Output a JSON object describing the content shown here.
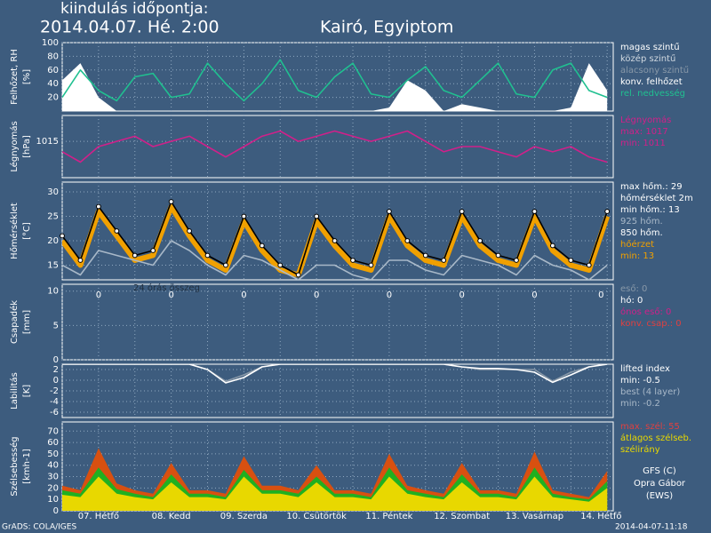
{
  "header": {
    "label": "kiindulás időpontja:",
    "date": "2014.04.07. Hé. 2:00",
    "location": "Kairó, Egyiptom"
  },
  "xaxis": {
    "xlim": [
      0,
      182
    ],
    "x": [
      12,
      36,
      60,
      84,
      108,
      132,
      156,
      178
    ],
    "categories": [
      "07. Hétfő",
      "08. Kedd",
      "09. Szerda",
      "10. Csütörtök",
      "11. Péntek",
      "12. Szombat",
      "13. Vasárnap",
      "14. Hétfő"
    ],
    "xticks": [
      0,
      12,
      24,
      36,
      48,
      60,
      72,
      84,
      96,
      108,
      120,
      132,
      144,
      156,
      168,
      180
    ]
  },
  "chart_data": [
    {
      "type": "line",
      "ylabel": [
        "Felhőzet, RH",
        "[%]"
      ],
      "ylim": [
        0,
        100
      ],
      "yticks": [
        20,
        40,
        60,
        80,
        100
      ],
      "grid": true,
      "x": [
        0,
        6,
        12,
        18,
        24,
        30,
        36,
        42,
        48,
        54,
        60,
        66,
        72,
        78,
        84,
        90,
        96,
        102,
        108,
        114,
        120,
        126,
        132,
        138,
        144,
        150,
        156,
        162,
        168,
        174,
        180
      ],
      "series": [
        {
          "color": "#ffffff",
          "fill": true,
          "values": [
            45,
            70,
            20,
            0,
            0,
            0,
            0,
            0,
            0,
            0,
            0,
            0,
            0,
            0,
            0,
            0,
            0,
            0,
            5,
            45,
            30,
            0,
            10,
            5,
            0,
            0,
            0,
            0,
            5,
            70,
            30
          ]
        },
        {
          "color": "#20c090",
          "values": [
            20,
            60,
            30,
            15,
            50,
            55,
            20,
            25,
            70,
            40,
            15,
            40,
            75,
            30,
            20,
            50,
            70,
            25,
            20,
            45,
            65,
            30,
            20,
            45,
            70,
            25,
            20,
            60,
            70,
            30,
            20
          ]
        }
      ],
      "legend": [
        {
          "text": "magas szintű",
          "color": "#ffffff"
        },
        {
          "text": "közép szintű",
          "color": "#d0d8e0"
        },
        {
          "text": "alacsony szintű",
          "color": "#8898a8"
        },
        {
          "text": "konv. felhőzet",
          "color": "#ffffff"
        },
        {
          "text": "rel. nedvesség",
          "color": "#20c090"
        }
      ]
    },
    {
      "type": "line",
      "ylabel": [
        "Légnyomás",
        "[hPa]"
      ],
      "ylim": [
        1008,
        1020
      ],
      "yticks": [
        1015
      ],
      "grid": true,
      "x": [
        0,
        6,
        12,
        18,
        24,
        30,
        36,
        42,
        48,
        54,
        60,
        66,
        72,
        78,
        84,
        90,
        96,
        102,
        108,
        114,
        120,
        126,
        132,
        138,
        144,
        150,
        156,
        162,
        168,
        174,
        180
      ],
      "series": [
        {
          "color": "#d0208a",
          "values": [
            1013,
            1011,
            1014,
            1015,
            1016,
            1014,
            1015,
            1016,
            1014,
            1012,
            1014,
            1016,
            1017,
            1015,
            1016,
            1017,
            1016,
            1015,
            1016,
            1017,
            1015,
            1013,
            1014,
            1014,
            1013,
            1012,
            1014,
            1013,
            1014,
            1012,
            1011
          ]
        }
      ],
      "legend": [
        {
          "text": "Légnyomás",
          "color": "#d0208a"
        },
        {
          "text": "max: 1017",
          "color": "#d0208a"
        },
        {
          "text": "min: 1011",
          "color": "#d0208a"
        }
      ]
    },
    {
      "type": "line",
      "ylabel": [
        "Hőmérséklet",
        "[°C]"
      ],
      "ylim": [
        12,
        32
      ],
      "yticks": [
        15,
        20,
        25,
        30
      ],
      "grid": true,
      "x": [
        0,
        6,
        12,
        18,
        24,
        30,
        36,
        42,
        48,
        54,
        60,
        66,
        72,
        78,
        84,
        90,
        96,
        102,
        108,
        114,
        120,
        126,
        132,
        138,
        144,
        150,
        156,
        162,
        168,
        174,
        180
      ],
      "series": [
        {
          "color": "#f0a000",
          "width": 6,
          "values": [
            20,
            15,
            26,
            21,
            16,
            17,
            27,
            21,
            16,
            14,
            24,
            18,
            14,
            13,
            24,
            19,
            15,
            14,
            25,
            19,
            16,
            15,
            25,
            19,
            16,
            15,
            25,
            18,
            15,
            14,
            25
          ]
        },
        {
          "color": "#a8b8c8",
          "values": [
            15,
            13,
            18,
            17,
            16,
            15,
            20,
            18,
            15,
            13,
            17,
            16,
            14,
            12,
            15,
            15,
            13,
            12,
            16,
            16,
            14,
            13,
            17,
            16,
            15,
            13,
            17,
            15,
            14,
            12,
            15
          ]
        },
        {
          "color": "#000000",
          "dots": true,
          "values": [
            21,
            16,
            27,
            22,
            17,
            18,
            28,
            22,
            17,
            15,
            25,
            19,
            15,
            13,
            25,
            20,
            16,
            15,
            26,
            20,
            17,
            16,
            26,
            20,
            17,
            16,
            26,
            19,
            16,
            15,
            26
          ]
        }
      ],
      "legend": [
        {
          "text": "max hőm.: 29",
          "color": "#ffffff"
        },
        {
          "text": "hőmérséklet 2m",
          "color": "#ffffff"
        },
        {
          "text": "min hőm.: 13",
          "color": "#ffffff"
        },
        {
          "text": "925 hőm.",
          "color": "#a8b8c8"
        },
        {
          "text": "850 hőm.",
          "color": "#ffffff"
        },
        {
          "text": "hőérzet",
          "color": "#f0a000"
        },
        {
          "text": "min: 13",
          "color": "#f0a000"
        }
      ]
    },
    {
      "type": "bar",
      "ylabel": [
        "Csapadék",
        "[mm]"
      ],
      "ylim": [
        0,
        11
      ],
      "yticks": [
        0,
        5,
        10
      ],
      "grid": true,
      "annotation": "24 órás összeg",
      "x": [
        12,
        36,
        60,
        84,
        108,
        132,
        156,
        178
      ],
      "values": [
        0,
        0,
        0,
        0,
        0,
        0,
        0,
        0
      ],
      "color": "#40a0ff",
      "legend": [
        {
          "text": "eső: 0",
          "color": "#8898a8"
        },
        {
          "text": "hó: 0",
          "color": "#ffffff"
        },
        {
          "text": "ónos eső: 0",
          "color": "#d0208a"
        },
        {
          "text": "konv. csap.: 0",
          "color": "#e04040"
        }
      ]
    },
    {
      "type": "line",
      "ylabel": [
        "Labilitás",
        "[K]"
      ],
      "ylim": [
        -7,
        3
      ],
      "yticks": [
        2,
        0,
        -2,
        -4,
        -6
      ],
      "grid": true,
      "x": [
        0,
        6,
        12,
        18,
        24,
        30,
        36,
        42,
        48,
        54,
        60,
        66,
        72,
        78,
        84,
        90,
        96,
        102,
        108,
        114,
        120,
        126,
        132,
        138,
        144,
        150,
        156,
        162,
        168,
        174,
        180
      ],
      "series": [
        {
          "color": "#8898a8",
          "values": [
            3,
            3,
            3,
            3,
            3,
            3,
            3,
            3,
            2,
            -0.2,
            1,
            2.5,
            3,
            3,
            3,
            3,
            3,
            3,
            3,
            3,
            3,
            3,
            2.5,
            2,
            2,
            2,
            2,
            -0.2,
            1.5,
            2.5,
            3
          ]
        },
        {
          "color": "#ffffff",
          "values": [
            3,
            3,
            3,
            3,
            3,
            3,
            3,
            3,
            2,
            -0.5,
            0.5,
            2.5,
            3,
            3,
            3,
            3,
            3,
            3,
            3,
            3,
            3,
            3,
            2.5,
            2.2,
            2.2,
            2,
            1.5,
            -0.4,
            1,
            2.5,
            3
          ]
        }
      ],
      "legend": [
        {
          "text": "lifted index",
          "color": "#ffffff"
        },
        {
          "text": "min: -0.5",
          "color": "#ffffff"
        },
        {
          "text": "best (4 layer)",
          "color": "#a8b8c8"
        },
        {
          "text": "min: -0.2",
          "color": "#a8b8c8"
        }
      ]
    },
    {
      "type": "line",
      "ylabel": [
        "Szélsebesség",
        "[kmh-1]"
      ],
      "ylim": [
        0,
        78
      ],
      "yticks": [
        0,
        10,
        20,
        30,
        40,
        50,
        60,
        70
      ],
      "grid": true,
      "x": [
        0,
        6,
        12,
        18,
        24,
        30,
        36,
        42,
        48,
        54,
        60,
        66,
        72,
        78,
        84,
        90,
        96,
        102,
        108,
        114,
        120,
        126,
        132,
        138,
        144,
        150,
        156,
        162,
        168,
        174,
        180
      ],
      "series": [
        {
          "color": "#d85010",
          "fill": true,
          "values": [
            22,
            18,
            55,
            24,
            18,
            15,
            42,
            18,
            18,
            15,
            48,
            22,
            22,
            18,
            40,
            18,
            18,
            15,
            50,
            22,
            18,
            15,
            42,
            18,
            18,
            15,
            52,
            18,
            15,
            12,
            35
          ]
        },
        {
          "color": "#20b020",
          "fill": true,
          "values": [
            18,
            15,
            38,
            19,
            15,
            12,
            32,
            15,
            15,
            12,
            36,
            18,
            18,
            15,
            30,
            15,
            15,
            12,
            38,
            18,
            15,
            12,
            32,
            15,
            15,
            12,
            38,
            15,
            12,
            10,
            26
          ]
        },
        {
          "color": "#e8d800",
          "fill": true,
          "values": [
            14,
            12,
            30,
            15,
            12,
            10,
            25,
            12,
            12,
            10,
            30,
            15,
            15,
            12,
            25,
            12,
            12,
            10,
            30,
            15,
            12,
            10,
            25,
            12,
            12,
            10,
            30,
            12,
            10,
            8,
            20
          ]
        }
      ],
      "legend": [
        {
          "text": "max. szél: 55",
          "color": "#e04040"
        },
        {
          "text": "átlagos szélseb.",
          "color": "#e8d800"
        },
        {
          "text": "szélirány",
          "color": "#e8d800"
        }
      ]
    }
  ],
  "footer": {
    "software": "GrADS: COLA/IGES",
    "timestamp": "2014-04-07-11:18",
    "credit": [
      "GFS (C)",
      "Opra Gábor",
      "(EWS)"
    ]
  }
}
